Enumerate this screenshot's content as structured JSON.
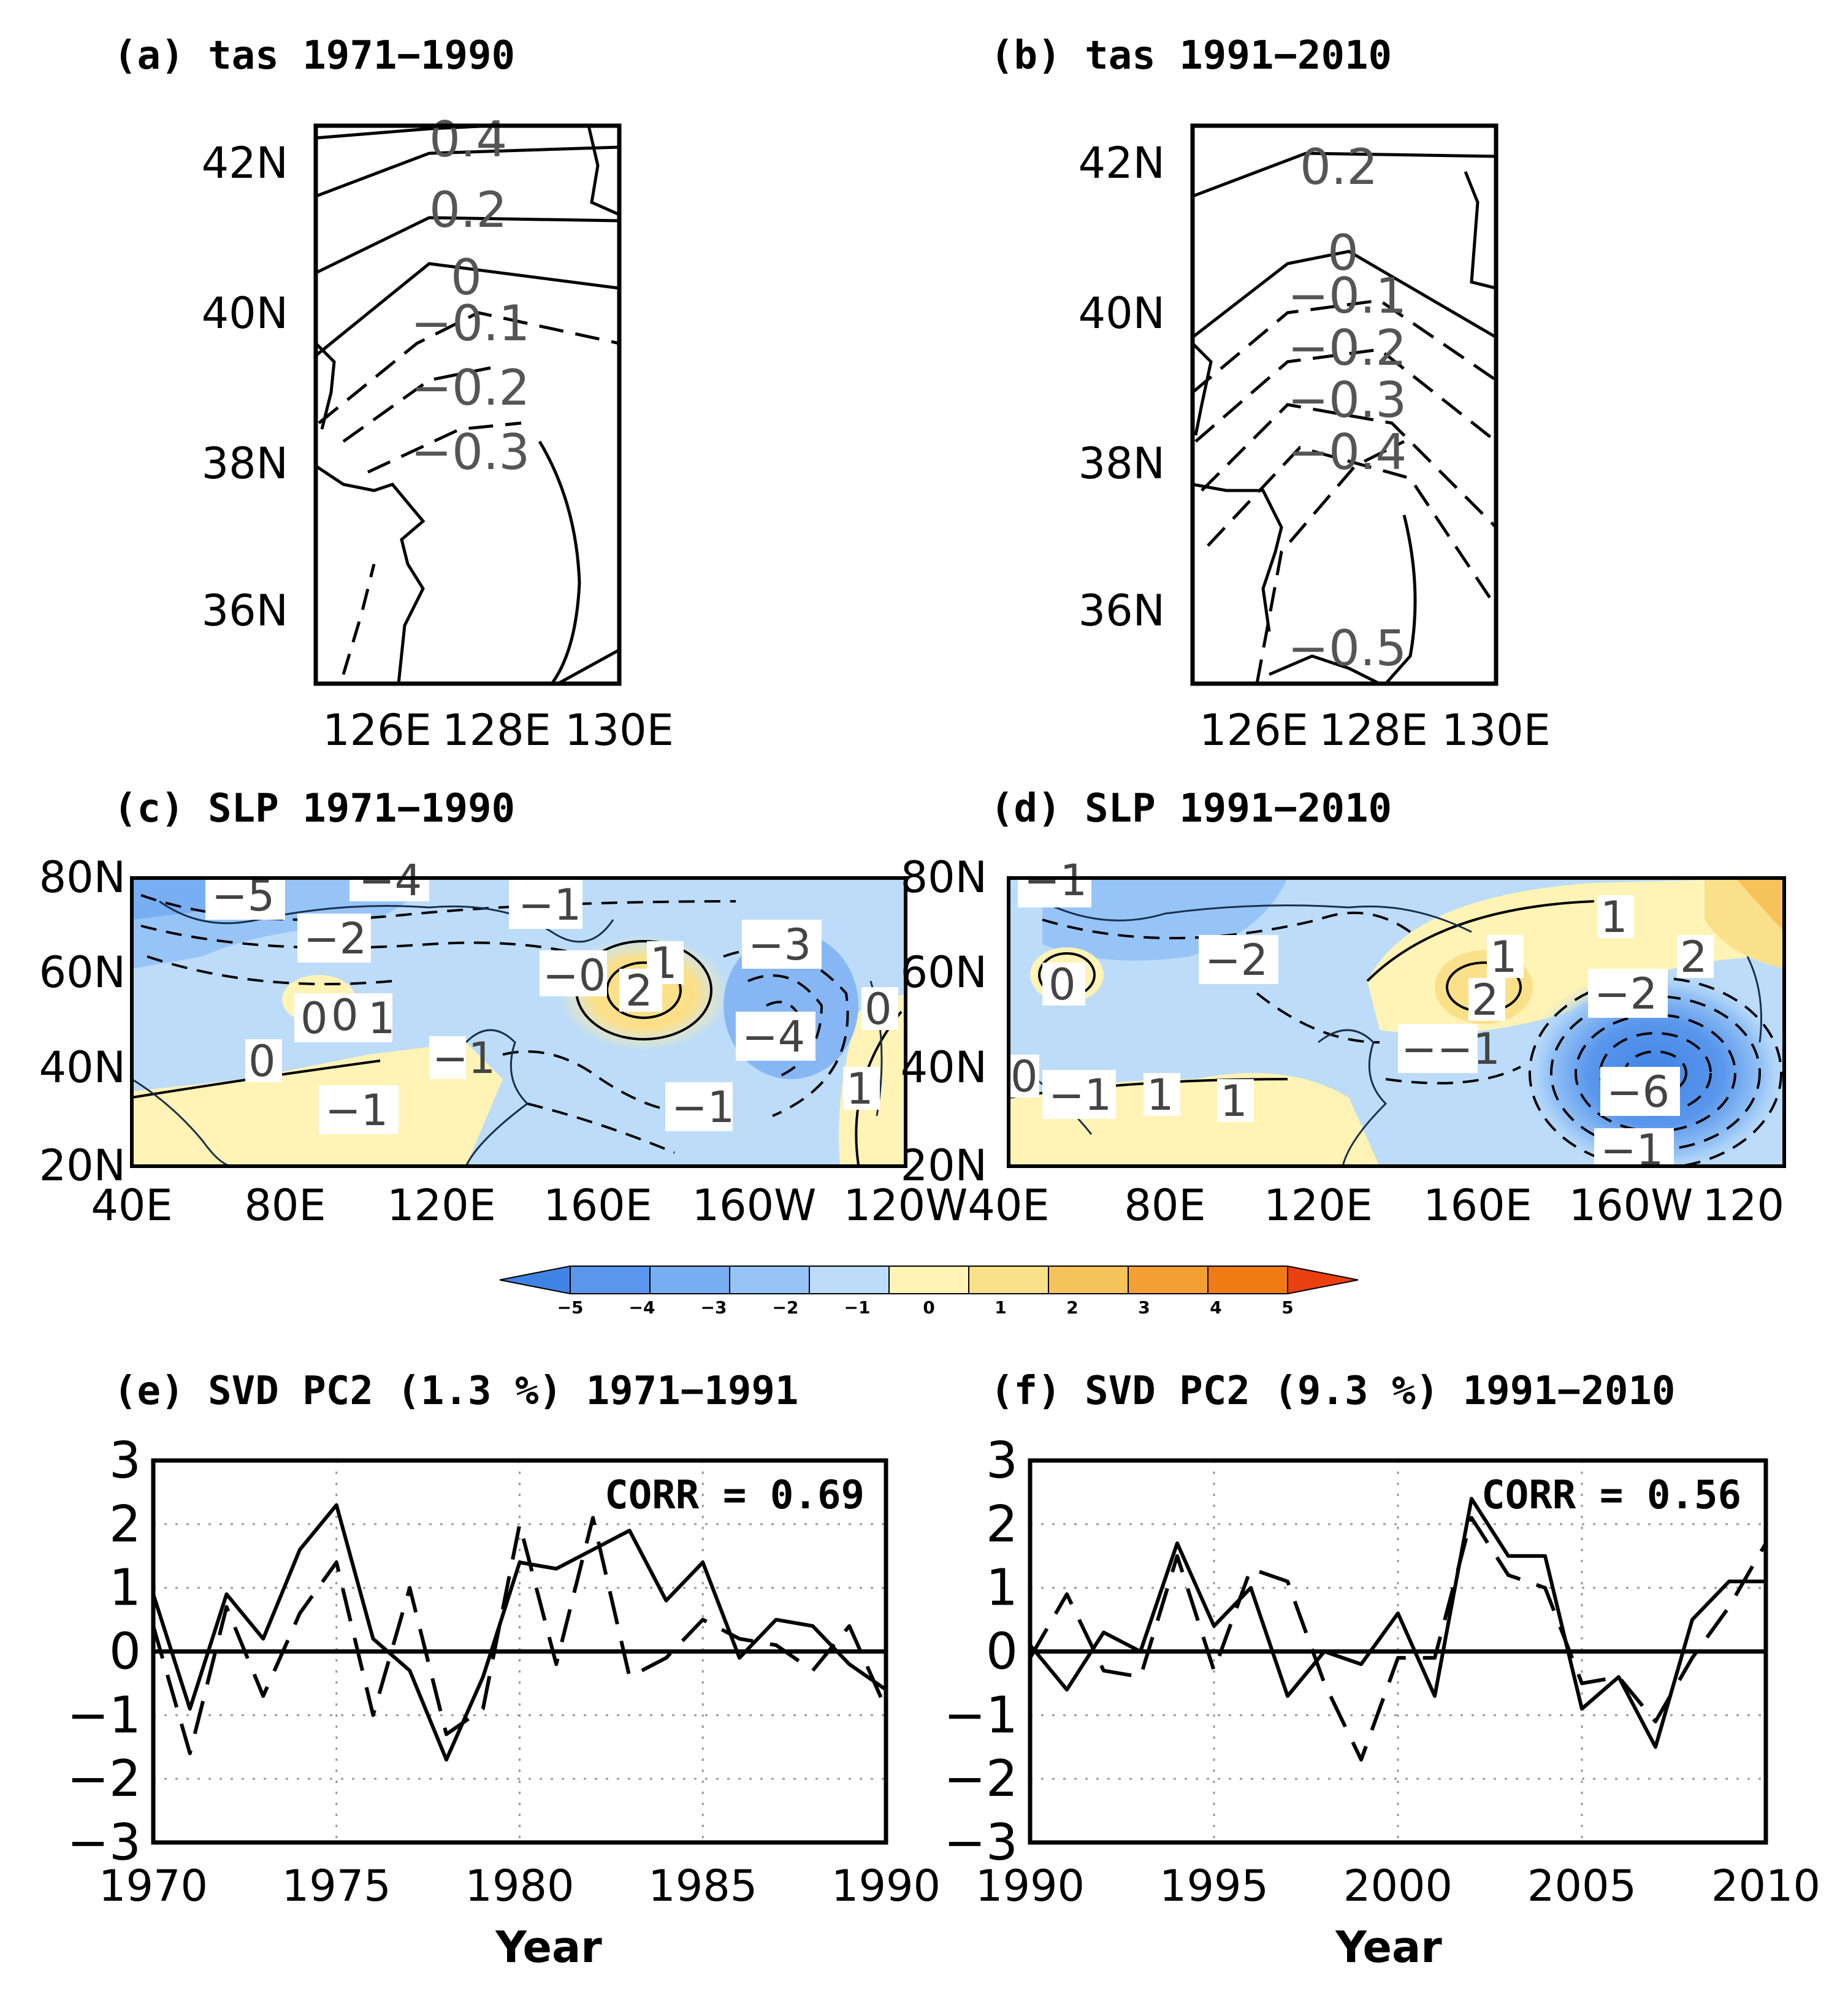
{
  "panels": {
    "a": {
      "title": "(a) tas 1971−1990",
      "y_ticks": [
        "42N",
        "40N",
        "38N",
        "36N"
      ],
      "x_ticks": [
        "126E",
        "128E",
        "130E"
      ],
      "contour_labels": [
        "0.4",
        "0.2",
        "0",
        "−0.1",
        "−0.2",
        "−0.3"
      ]
    },
    "b": {
      "title": "(b) tas 1991−2010",
      "y_ticks": [
        "42N",
        "40N",
        "38N",
        "36N"
      ],
      "x_ticks": [
        "126E",
        "128E",
        "130E"
      ],
      "contour_labels": [
        "0.2",
        "0",
        "−0.1",
        "−0.2",
        "−0.3",
        "−0.4",
        "−0.5"
      ]
    },
    "c": {
      "title": "(c) SLP 1971−1990",
      "y_ticks": [
        "80N",
        "60N",
        "40N",
        "20N"
      ],
      "x_ticks": [
        "40E",
        "80E",
        "120E",
        "160E",
        "160W",
        "120W"
      ],
      "contour_labels": [
        "−5",
        "−4",
        "−1",
        "−2",
        "−3",
        "−0",
        "1",
        "2",
        "−4",
        "0",
        "0",
        "0",
        "1",
        "0",
        "−1",
        "−1",
        "1",
        "−1"
      ]
    },
    "d": {
      "title": "(d) SLP 1991−2010",
      "y_ticks": [
        "80N",
        "60N",
        "40N",
        "20N"
      ],
      "x_ticks": [
        "40E",
        "80E",
        "120E",
        "160E",
        "160W",
        "120"
      ],
      "contour_labels": [
        "−1",
        "0",
        "−2",
        "1",
        "1",
        "2",
        "−2",
        "2",
        "−−1",
        "−6",
        "0",
        "−1",
        "1",
        "1",
        "−1"
      ]
    },
    "e": {
      "title": "(e) SVD PC2 (1.3 %) 1971−1991",
      "corr_label": "CORR = 0.69",
      "x_title": "Year",
      "y_ticks": [
        "3",
        "2",
        "1",
        "0",
        "−1",
        "−2",
        "−3"
      ],
      "x_ticks": [
        "1970",
        "1975",
        "1980",
        "1985",
        "1990"
      ]
    },
    "f": {
      "title": "(f) SVD PC2 (9.3 %) 1991−2010",
      "corr_label": "CORR = 0.56",
      "x_title": "Year",
      "y_ticks": [
        "3",
        "2",
        "1",
        "0",
        "−1",
        "−2",
        "−3"
      ],
      "x_ticks": [
        "1990",
        "1995",
        "2000",
        "2005",
        "2010"
      ]
    }
  },
  "colorbar": {
    "ticks": [
      "−5",
      "−4",
      "−3",
      "−2",
      "−1",
      "0",
      "1",
      "2",
      "3",
      "4",
      "5"
    ],
    "colors": [
      "#3f84e5",
      "#5a97ec",
      "#78aef2",
      "#97c4f6",
      "#bcdcf9",
      "#fff3b5",
      "#fbe08a",
      "#f6c35b",
      "#f3a033",
      "#f07a13",
      "#ea3f0f"
    ]
  },
  "chart_data": [
    {
      "type": "line",
      "title": "(e) SVD PC2 (1.3 %) 1971−1991",
      "xlabel": "Year",
      "ylabel": "",
      "xlim": [
        1970,
        1990
      ],
      "ylim": [
        -3,
        3
      ],
      "annotation": "CORR = 0.69",
      "series": [
        {
          "name": "solid",
          "x": [
            1970,
            1971,
            1972,
            1973,
            1974,
            1975,
            1976,
            1977,
            1978,
            1979,
            1980,
            1981,
            1982,
            1983,
            1984,
            1985,
            1986,
            1987,
            1988,
            1989,
            1990
          ],
          "values": [
            0.9,
            -0.9,
            0.9,
            0.2,
            1.6,
            2.3,
            0.2,
            -0.3,
            -1.7,
            -0.4,
            1.4,
            1.3,
            1.6,
            1.9,
            0.8,
            1.4,
            -0.1,
            0.5,
            0.4,
            -0.2,
            -0.6
          ]
        },
        {
          "name": "dashed",
          "x": [
            1970,
            1971,
            1972,
            1973,
            1974,
            1975,
            1976,
            1977,
            1978,
            1979,
            1980,
            1981,
            1982,
            1983,
            1984,
            1985,
            1986,
            1987,
            1988,
            1989,
            1990
          ],
          "values": [
            0.4,
            -1.6,
            0.7,
            -0.7,
            0.6,
            1.4,
            -1.0,
            1.0,
            -1.3,
            -0.9,
            2.0,
            -0.2,
            2.1,
            -0.4,
            -0.1,
            0.5,
            0.2,
            0.1,
            -0.3,
            0.4,
            -0.9
          ]
        }
      ]
    },
    {
      "type": "line",
      "title": "(f) SVD PC2 (9.3 %) 1991−2010",
      "xlabel": "Year",
      "ylabel": "",
      "xlim": [
        1990,
        2010
      ],
      "ylim": [
        -3,
        3
      ],
      "annotation": "CORR = 0.56",
      "series": [
        {
          "name": "solid",
          "x": [
            1990,
            1991,
            1992,
            1993,
            1994,
            1995,
            1996,
            1997,
            1998,
            1999,
            2000,
            2001,
            2002,
            2003,
            2004,
            2005,
            2006,
            2007,
            2008,
            2009,
            2010
          ],
          "values": [
            0.1,
            -0.6,
            0.3,
            0.0,
            1.7,
            0.4,
            1.0,
            -0.7,
            0.0,
            -0.2,
            0.6,
            -0.7,
            2.4,
            1.5,
            1.5,
            -0.9,
            -0.4,
            -1.5,
            0.5,
            1.1,
            1.1
          ]
        },
        {
          "name": "dashed",
          "x": [
            1990,
            1991,
            1992,
            1993,
            1994,
            1995,
            1996,
            1997,
            1998,
            1999,
            2000,
            2001,
            2002,
            2003,
            2004,
            2005,
            2006,
            2007,
            2008,
            2009,
            2010
          ],
          "values": [
            -0.1,
            0.9,
            -0.3,
            -0.4,
            1.5,
            -0.3,
            1.3,
            1.1,
            -0.5,
            -1.7,
            -0.1,
            -0.1,
            2.1,
            1.2,
            1.0,
            -0.5,
            -0.4,
            -1.1,
            -0.1,
            0.7,
            1.7
          ]
        }
      ]
    }
  ]
}
